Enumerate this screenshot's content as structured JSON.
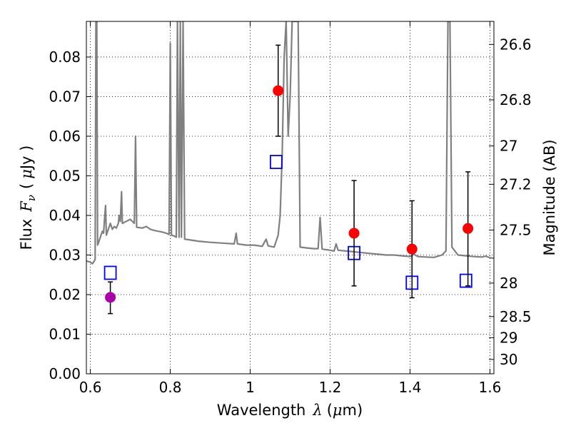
{
  "chart_data": {
    "type": "scatter",
    "xlabel": {
      "main": "Wavelength",
      "symbol": "λ",
      "unit_open": "(",
      "unit_mu": "μ",
      "unit_rest": "m)"
    },
    "ylabel": {
      "main": "Flux",
      "symbol": "F",
      "sub": "ν",
      "unit_open": "(",
      "unit_mu": "μ",
      "unit_rest": "Jy )"
    },
    "ylabel_right": "Magnitude (AB)",
    "xlim": [
      0.59,
      1.61
    ],
    "ylim": [
      0.0,
      0.089
    ],
    "grid": true,
    "x_ticks": [
      {
        "value": 0.6,
        "label": "0.6"
      },
      {
        "value": 0.8,
        "label": "0.8"
      },
      {
        "value": 1.0,
        "label": "1"
      },
      {
        "value": 1.2,
        "label": "1.2"
      },
      {
        "value": 1.4,
        "label": "1.4"
      },
      {
        "value": 1.6,
        "label": "1.6"
      }
    ],
    "y_ticks": [
      {
        "value": 0.0,
        "label": "0.00"
      },
      {
        "value": 0.01,
        "label": "0.01"
      },
      {
        "value": 0.02,
        "label": "0.02"
      },
      {
        "value": 0.03,
        "label": "0.03"
      },
      {
        "value": 0.04,
        "label": "0.04"
      },
      {
        "value": 0.05,
        "label": "0.05"
      },
      {
        "value": 0.06,
        "label": "0.06"
      },
      {
        "value": 0.07,
        "label": "0.07"
      },
      {
        "value": 0.08,
        "label": "0.08"
      }
    ],
    "right_ticks": [
      {
        "mag": 26.6,
        "label": "26.6"
      },
      {
        "mag": 26.8,
        "label": "26.8"
      },
      {
        "mag": 27.0,
        "label": "27"
      },
      {
        "mag": 27.2,
        "label": "27.2"
      },
      {
        "mag": 27.5,
        "label": "27.5"
      },
      {
        "mag": 28.0,
        "label": "28"
      },
      {
        "mag": 28.5,
        "label": "28.5"
      },
      {
        "mag": 29.0,
        "label": "29"
      },
      {
        "mag": 30.0,
        "label": "30"
      }
    ],
    "series": [
      {
        "name": "model-spectrum",
        "kind": "line",
        "color": "#808080",
        "points": [
          [
            0.59,
            0.0285
          ],
          [
            0.6,
            0.0282
          ],
          [
            0.605,
            0.0278
          ],
          [
            0.61,
            0.0285
          ],
          [
            0.612,
            0.029
          ],
          [
            0.614,
            0.089
          ],
          [
            0.616,
            0.089
          ],
          [
            0.618,
            0.0325
          ],
          [
            0.62,
            0.033
          ],
          [
            0.625,
            0.0345
          ],
          [
            0.63,
            0.036
          ],
          [
            0.633,
            0.0355
          ],
          [
            0.636,
            0.04
          ],
          [
            0.638,
            0.0425
          ],
          [
            0.64,
            0.035
          ],
          [
            0.645,
            0.0365
          ],
          [
            0.65,
            0.038
          ],
          [
            0.655,
            0.0365
          ],
          [
            0.66,
            0.0372
          ],
          [
            0.665,
            0.0368
          ],
          [
            0.67,
            0.038
          ],
          [
            0.672,
            0.04
          ],
          [
            0.675,
            0.0385
          ],
          [
            0.678,
            0.046
          ],
          [
            0.68,
            0.038
          ],
          [
            0.69,
            0.0385
          ],
          [
            0.7,
            0.039
          ],
          [
            0.71,
            0.038
          ],
          [
            0.713,
            0.06
          ],
          [
            0.716,
            0.037
          ],
          [
            0.73,
            0.0368
          ],
          [
            0.74,
            0.0372
          ],
          [
            0.75,
            0.0365
          ],
          [
            0.76,
            0.0362
          ],
          [
            0.77,
            0.036
          ],
          [
            0.78,
            0.0358
          ],
          [
            0.79,
            0.0355
          ],
          [
            0.797,
            0.0352
          ],
          [
            0.8,
            0.0835
          ],
          [
            0.803,
            0.035
          ],
          [
            0.81,
            0.0348
          ],
          [
            0.815,
            0.0345
          ],
          [
            0.818,
            0.089
          ],
          [
            0.822,
            0.0345
          ],
          [
            0.825,
            0.089
          ],
          [
            0.828,
            0.0345
          ],
          [
            0.832,
            0.089
          ],
          [
            0.836,
            0.034
          ],
          [
            0.85,
            0.0338
          ],
          [
            0.87,
            0.0335
          ],
          [
            0.9,
            0.0332
          ],
          [
            0.93,
            0.033
          ],
          [
            0.96,
            0.0328
          ],
          [
            0.965,
            0.0355
          ],
          [
            0.968,
            0.0328
          ],
          [
            0.99,
            0.0325
          ],
          [
            1.01,
            0.0325
          ],
          [
            1.03,
            0.0322
          ],
          [
            1.04,
            0.034
          ],
          [
            1.045,
            0.0323
          ],
          [
            1.06,
            0.032
          ],
          [
            1.07,
            0.035
          ],
          [
            1.075,
            0.04
          ],
          [
            1.08,
            0.055
          ],
          [
            1.085,
            0.08
          ],
          [
            1.09,
            0.089
          ],
          [
            1.095,
            0.06
          ],
          [
            1.1,
            0.07
          ],
          [
            1.105,
            0.089
          ],
          [
            1.11,
            0.089
          ],
          [
            1.115,
            0.089
          ],
          [
            1.12,
            0.089
          ],
          [
            1.125,
            0.032
          ],
          [
            1.14,
            0.0318
          ],
          [
            1.16,
            0.0316
          ],
          [
            1.17,
            0.0316
          ],
          [
            1.175,
            0.0395
          ],
          [
            1.18,
            0.0315
          ],
          [
            1.2,
            0.0312
          ],
          [
            1.21,
            0.031
          ],
          [
            1.215,
            0.0328
          ],
          [
            1.22,
            0.0312
          ],
          [
            1.24,
            0.031
          ],
          [
            1.26,
            0.0308
          ],
          [
            1.28,
            0.0306
          ],
          [
            1.3,
            0.0304
          ],
          [
            1.32,
            0.0302
          ],
          [
            1.34,
            0.03
          ],
          [
            1.36,
            0.03
          ],
          [
            1.38,
            0.0298
          ],
          [
            1.4,
            0.0296
          ],
          [
            1.41,
            0.0302
          ],
          [
            1.42,
            0.0296
          ],
          [
            1.44,
            0.0295
          ],
          [
            1.46,
            0.0294
          ],
          [
            1.48,
            0.03
          ],
          [
            1.49,
            0.031
          ],
          [
            1.495,
            0.089
          ],
          [
            1.5,
            0.089
          ],
          [
            1.505,
            0.032
          ],
          [
            1.52,
            0.03
          ],
          [
            1.54,
            0.0298
          ],
          [
            1.56,
            0.0296
          ],
          [
            1.58,
            0.0295
          ],
          [
            1.59,
            0.0297
          ],
          [
            1.6,
            0.0293
          ],
          [
            1.61,
            0.0292
          ]
        ]
      },
      {
        "name": "model-photometry",
        "kind": "scatter",
        "marker": "open-square",
        "color": "#0000ff",
        "points": [
          [
            0.65,
            0.0255
          ],
          [
            1.065,
            0.0535
          ],
          [
            1.26,
            0.0305
          ],
          [
            1.405,
            0.023
          ],
          [
            1.54,
            0.0235
          ]
        ]
      },
      {
        "name": "observed-red",
        "kind": "scatter",
        "marker": "filled-circle",
        "color": "#ff0000",
        "points": [
          {
            "x": 1.07,
            "y": 0.0715,
            "ylo": 0.06,
            "yhi": 0.083
          },
          {
            "x": 1.26,
            "y": 0.0355,
            "ylo": 0.0222,
            "yhi": 0.0488
          },
          {
            "x": 1.405,
            "y": 0.0315,
            "ylo": 0.0192,
            "yhi": 0.0437
          },
          {
            "x": 1.545,
            "y": 0.0367,
            "ylo": 0.0222,
            "yhi": 0.051
          }
        ]
      },
      {
        "name": "observed-magenta",
        "kind": "scatter",
        "marker": "filled-circle",
        "color": "#aa00aa",
        "points": [
          {
            "x": 0.65,
            "y": 0.0193,
            "ylo": 0.0152,
            "yhi": 0.0232
          }
        ]
      }
    ]
  }
}
